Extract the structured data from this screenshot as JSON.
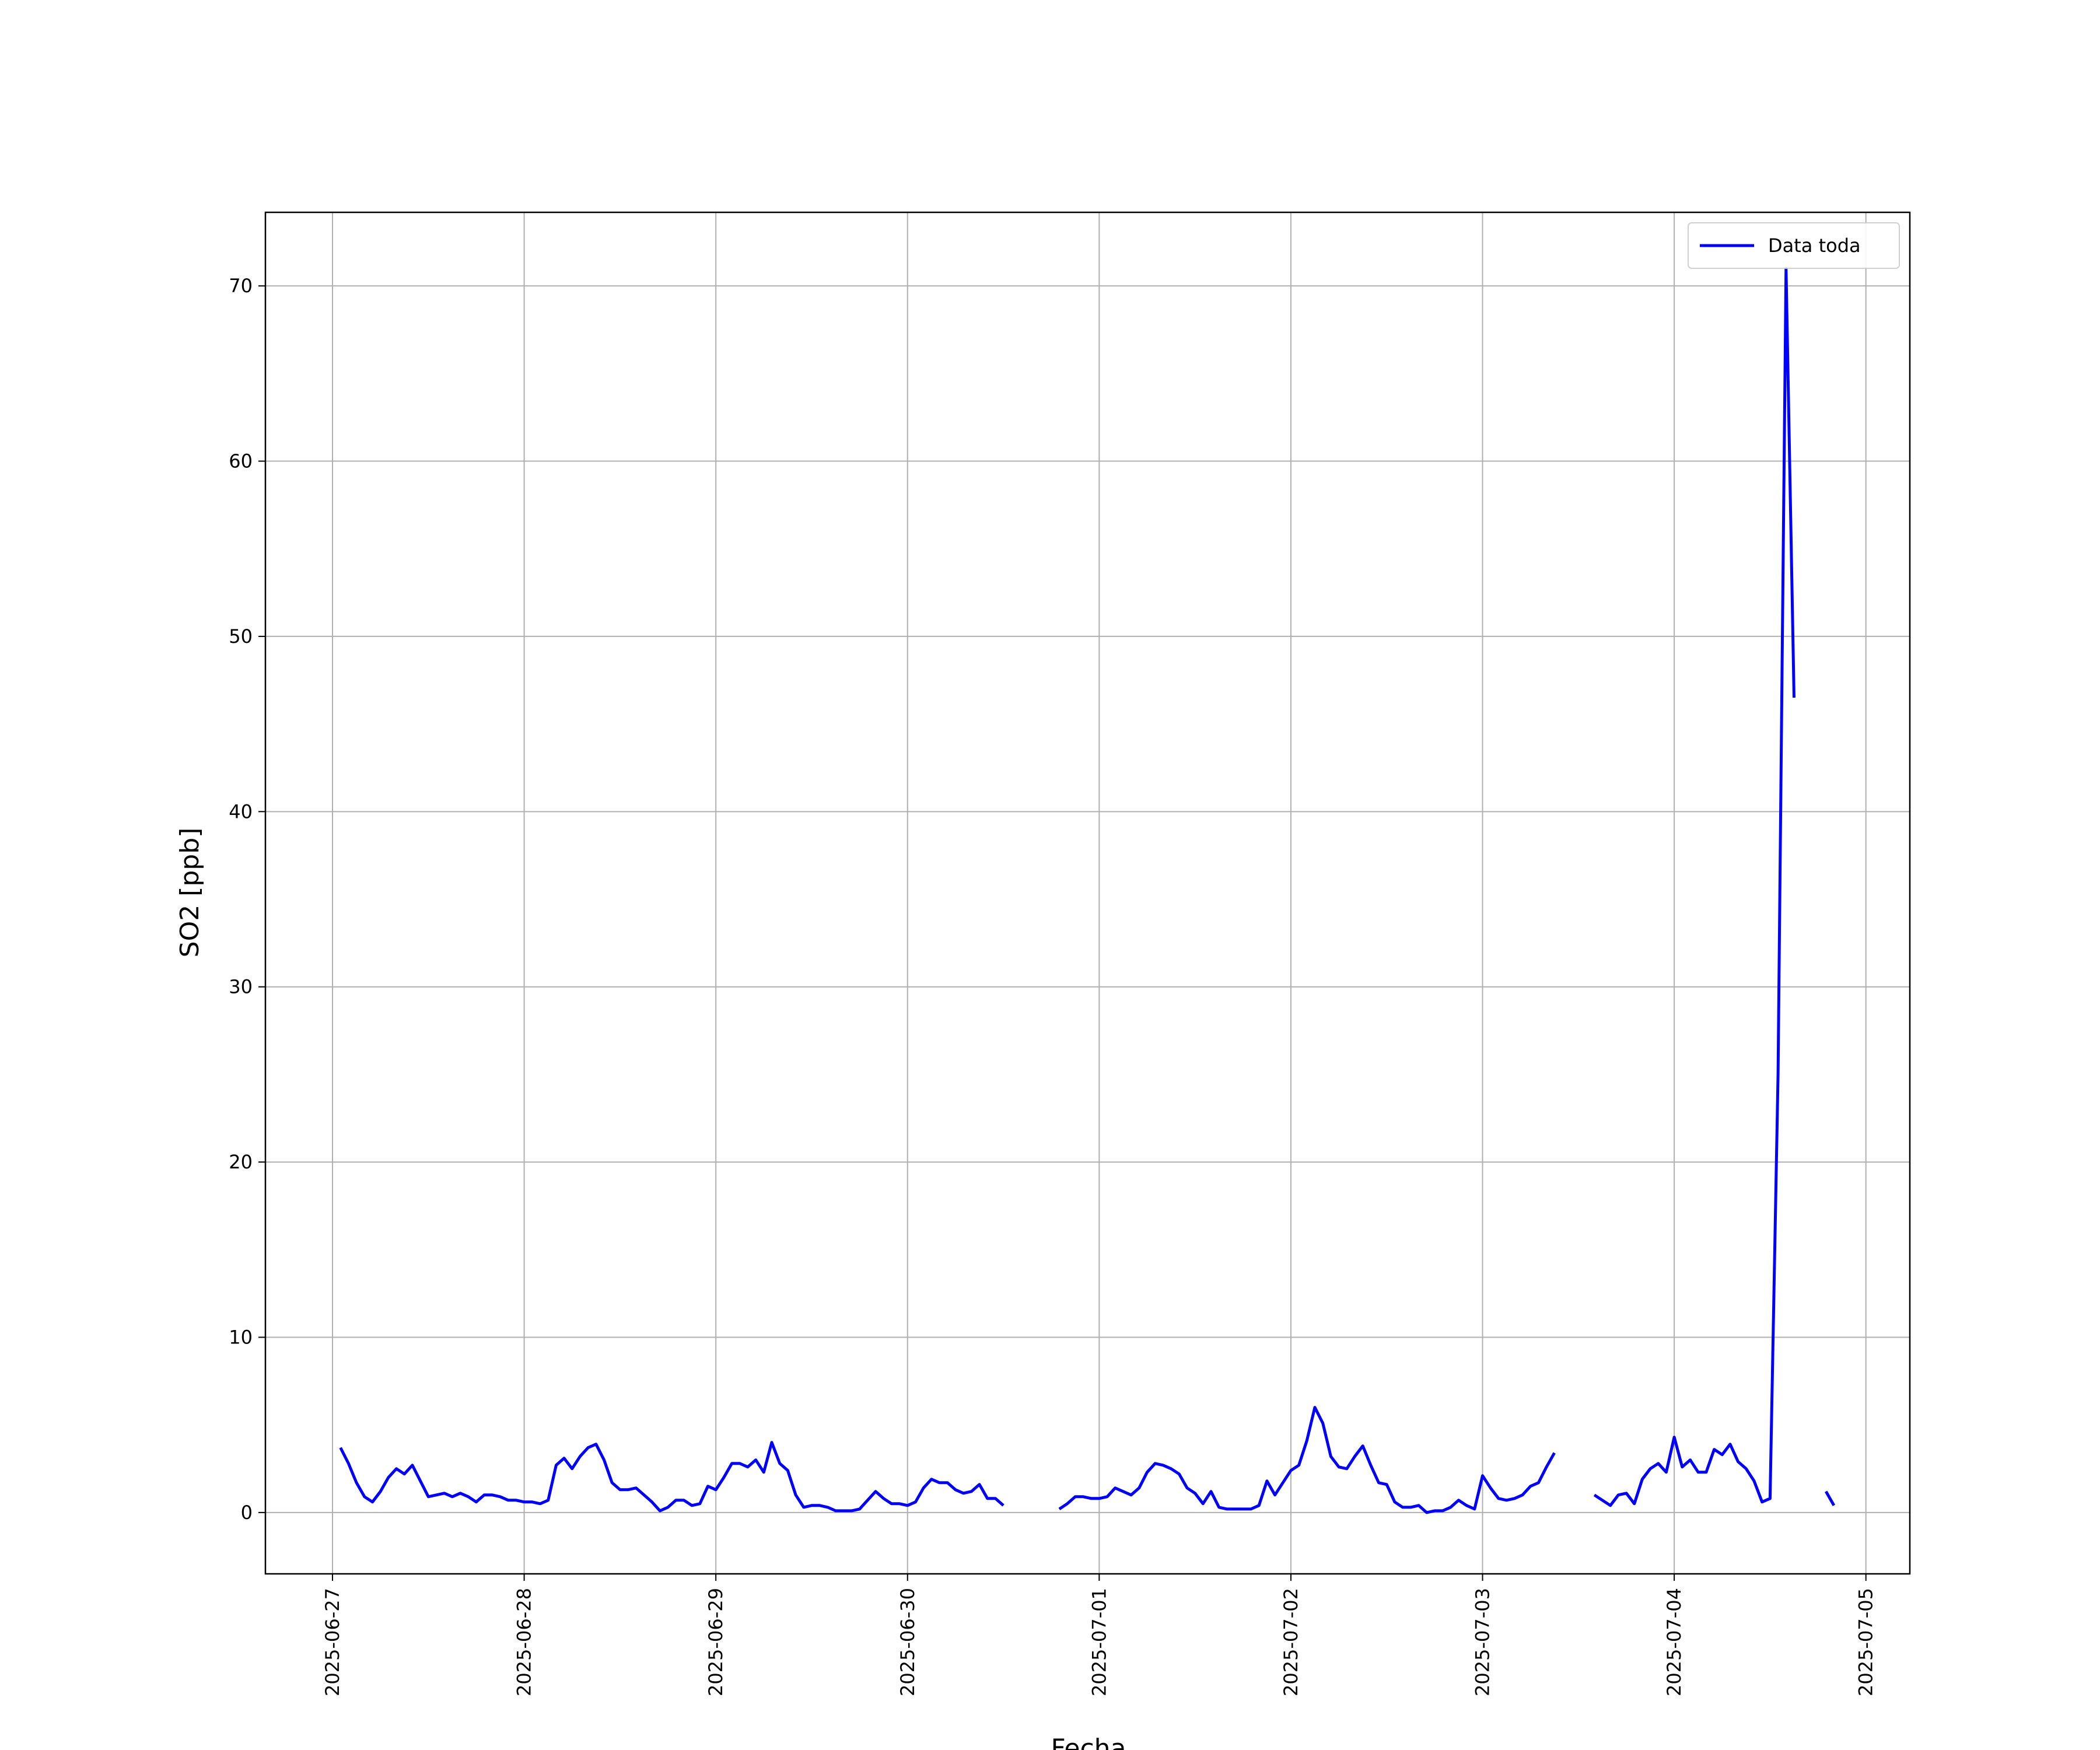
{
  "chart_data": {
    "type": "line",
    "xlabel": "Fecha",
    "ylabel": "SO2 [ppb]",
    "x": [
      "2025-06-27 01:00",
      "2025-06-27 02:00",
      "2025-06-27 03:00",
      "2025-06-27 04:00",
      "2025-06-27 05:00",
      "2025-06-27 06:00",
      "2025-06-27 07:00",
      "2025-06-27 08:00",
      "2025-06-27 09:00",
      "2025-06-27 10:00",
      "2025-06-27 11:00",
      "2025-06-27 12:00",
      "2025-06-27 13:00",
      "2025-06-27 14:00",
      "2025-06-27 15:00",
      "2025-06-27 16:00",
      "2025-06-27 17:00",
      "2025-06-27 18:00",
      "2025-06-27 19:00",
      "2025-06-27 20:00",
      "2025-06-27 21:00",
      "2025-06-27 22:00",
      "2025-06-27 23:00",
      "2025-06-28 00:00",
      "2025-06-28 01:00",
      "2025-06-28 02:00",
      "2025-06-28 03:00",
      "2025-06-28 04:00",
      "2025-06-28 05:00",
      "2025-06-28 06:00",
      "2025-06-28 07:00",
      "2025-06-28 08:00",
      "2025-06-28 09:00",
      "2025-06-28 10:00",
      "2025-06-28 11:00",
      "2025-06-28 12:00",
      "2025-06-28 13:00",
      "2025-06-28 14:00",
      "2025-06-28 15:00",
      "2025-06-28 16:00",
      "2025-06-28 17:00",
      "2025-06-28 18:00",
      "2025-06-28 19:00",
      "2025-06-28 20:00",
      "2025-06-28 21:00",
      "2025-06-28 22:00",
      "2025-06-28 23:00",
      "2025-06-29 00:00",
      "2025-06-29 01:00",
      "2025-06-29 02:00",
      "2025-06-29 03:00",
      "2025-06-29 04:00",
      "2025-06-29 05:00",
      "2025-06-29 06:00",
      "2025-06-29 07:00",
      "2025-06-29 08:00",
      "2025-06-29 09:00",
      "2025-06-29 10:00",
      "2025-06-29 11:00",
      "2025-06-29 12:00",
      "2025-06-29 13:00",
      "2025-06-29 14:00",
      "2025-06-29 15:00",
      "2025-06-29 16:00",
      "2025-06-29 17:00",
      "2025-06-29 18:00",
      "2025-06-29 19:00",
      "2025-06-29 20:00",
      "2025-06-29 21:00",
      "2025-06-29 22:00",
      "2025-06-29 23:00",
      "2025-06-30 00:00",
      "2025-06-30 01:00",
      "2025-06-30 02:00",
      "2025-06-30 03:00",
      "2025-06-30 04:00",
      "2025-06-30 05:00",
      "2025-06-30 06:00",
      "2025-06-30 07:00",
      "2025-06-30 08:00",
      "2025-06-30 09:00",
      "2025-06-30 10:00",
      "2025-06-30 11:00",
      "2025-06-30 12:00",
      "2025-06-30 13:00",
      "2025-06-30 19:00",
      "2025-06-30 20:00",
      "2025-06-30 21:00",
      "2025-06-30 22:00",
      "2025-06-30 23:00",
      "2025-07-01 00:00",
      "2025-07-01 01:00",
      "2025-07-01 02:00",
      "2025-07-01 03:00",
      "2025-07-01 04:00",
      "2025-07-01 05:00",
      "2025-07-01 06:00",
      "2025-07-01 07:00",
      "2025-07-01 08:00",
      "2025-07-01 09:00",
      "2025-07-01 10:00",
      "2025-07-01 11:00",
      "2025-07-01 12:00",
      "2025-07-01 13:00",
      "2025-07-01 14:00",
      "2025-07-01 15:00",
      "2025-07-01 16:00",
      "2025-07-01 17:00",
      "2025-07-01 18:00",
      "2025-07-01 19:00",
      "2025-07-01 20:00",
      "2025-07-01 21:00",
      "2025-07-01 22:00",
      "2025-07-01 23:00",
      "2025-07-02 00:00",
      "2025-07-02 01:00",
      "2025-07-02 02:00",
      "2025-07-02 03:00",
      "2025-07-02 04:00",
      "2025-07-02 05:00",
      "2025-07-02 06:00",
      "2025-07-02 07:00",
      "2025-07-02 08:00",
      "2025-07-02 09:00",
      "2025-07-02 10:00",
      "2025-07-02 11:00",
      "2025-07-02 12:00",
      "2025-07-02 13:00",
      "2025-07-02 14:00",
      "2025-07-02 15:00",
      "2025-07-02 16:00",
      "2025-07-02 17:00",
      "2025-07-02 18:00",
      "2025-07-02 19:00",
      "2025-07-02 20:00",
      "2025-07-02 21:00",
      "2025-07-02 22:00",
      "2025-07-02 23:00",
      "2025-07-03 00:00",
      "2025-07-03 01:00",
      "2025-07-03 02:00",
      "2025-07-03 03:00",
      "2025-07-03 04:00",
      "2025-07-03 05:00",
      "2025-07-03 06:00",
      "2025-07-03 07:00",
      "2025-07-03 08:00",
      "2025-07-03 09:00",
      "2025-07-03 10:00",
      "2025-07-03 14:00",
      "2025-07-03 15:00",
      "2025-07-03 16:00",
      "2025-07-03 17:00",
      "2025-07-03 18:00",
      "2025-07-03 19:00",
      "2025-07-03 20:00",
      "2025-07-03 21:00",
      "2025-07-03 22:00",
      "2025-07-03 23:00",
      "2025-07-04 00:00",
      "2025-07-04 01:00",
      "2025-07-04 02:00",
      "2025-07-04 03:00",
      "2025-07-04 04:00",
      "2025-07-04 05:00",
      "2025-07-04 06:00",
      "2025-07-04 07:00",
      "2025-07-04 08:00",
      "2025-07-04 09:00",
      "2025-07-04 10:00",
      "2025-07-04 11:00",
      "2025-07-04 12:00",
      "2025-07-04 13:00",
      "2025-07-04 14:00",
      "2025-07-04 15:00",
      "2025-07-04 16:00",
      "2025-07-04 19:00",
      "2025-07-04 20:00"
    ],
    "series": [
      {
        "name": "Data toda",
        "color": "#0000ff",
        "values": [
          3.7,
          2.8,
          1.7,
          0.9,
          0.6,
          1.2,
          2.0,
          2.5,
          2.2,
          2.7,
          1.8,
          0.9,
          1.0,
          1.1,
          0.9,
          1.1,
          0.9,
          0.6,
          1.0,
          1.0,
          0.9,
          0.7,
          0.7,
          0.6,
          0.6,
          0.5,
          0.7,
          2.7,
          3.1,
          2.5,
          3.2,
          3.7,
          3.9,
          3.0,
          1.7,
          1.3,
          1.3,
          1.4,
          1.0,
          0.6,
          0.1,
          0.3,
          0.7,
          0.7,
          0.4,
          0.5,
          1.5,
          1.3,
          2.0,
          2.8,
          2.8,
          2.6,
          3.0,
          2.3,
          4.0,
          2.8,
          2.4,
          1.0,
          0.3,
          0.4,
          0.4,
          0.3,
          0.1,
          0.1,
          0.1,
          0.2,
          0.7,
          1.2,
          0.8,
          0.5,
          0.5,
          0.4,
          0.6,
          1.4,
          1.9,
          1.7,
          1.7,
          1.3,
          1.1,
          1.2,
          1.6,
          0.8,
          0.8,
          0.4,
          null,
          0.2,
          0.5,
          0.9,
          0.9,
          0.8,
          0.8,
          0.9,
          1.4,
          1.2,
          1.0,
          1.4,
          2.3,
          2.8,
          2.7,
          2.5,
          2.2,
          1.4,
          1.1,
          0.5,
          1.2,
          0.3,
          0.2,
          0.2,
          0.2,
          0.2,
          0.4,
          1.8,
          1.0,
          1.7,
          2.4,
          2.7,
          4.1,
          6.0,
          5.1,
          3.2,
          2.6,
          2.5,
          3.2,
          3.8,
          2.7,
          1.7,
          1.6,
          0.6,
          0.3,
          0.3,
          0.4,
          0.0,
          0.1,
          0.1,
          0.3,
          0.7,
          0.4,
          0.2,
          2.1,
          1.4,
          0.8,
          0.7,
          0.8,
          1.0,
          1.5,
          1.7,
          2.6,
          3.4,
          null,
          1.0,
          0.7,
          0.4,
          1.0,
          1.1,
          0.5,
          1.9,
          2.5,
          2.8,
          2.3,
          4.3,
          2.6,
          3.0,
          2.3,
          2.3,
          3.6,
          3.3,
          3.9,
          2.9,
          2.5,
          1.8,
          0.6,
          0.8,
          25,
          71,
          46.5,
          null,
          1.2,
          0.4
        ]
      }
    ],
    "xlim": [
      "2025-06-26 15:36",
      "2025-07-05 05:30"
    ],
    "xticks": [
      "2025-06-27",
      "2025-06-28",
      "2025-06-29",
      "2025-06-30",
      "2025-07-01",
      "2025-07-02",
      "2025-07-03",
      "2025-07-04",
      "2025-07-05"
    ],
    "ylim": [
      -3.5,
      74.2
    ],
    "yticks": [
      0,
      10,
      20,
      30,
      40,
      50,
      60,
      70
    ],
    "grid": true,
    "legend": "upper right"
  }
}
